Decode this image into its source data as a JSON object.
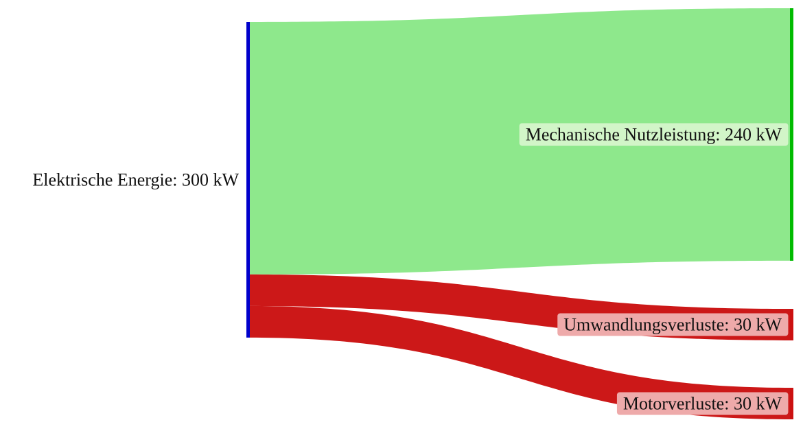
{
  "chart_data": {
    "type": "sankey",
    "unit": "kW",
    "nodes": [
      {
        "id": "src",
        "label": "Elektrische Energie: 300 kW",
        "name": "Elektrische Energie",
        "value": 300,
        "color": "#0000cc",
        "column": 0
      },
      {
        "id": "mech",
        "label": "Mechanische Nutzleistung: 240 kW",
        "name": "Mechanische Nutzleistung",
        "value": 240,
        "color": "#00bb00",
        "column": 1,
        "label_bg": "#d2f5c8"
      },
      {
        "id": "umw",
        "label": "Umwandlungsverluste: 30 kW",
        "name": "Umwandlungsverluste",
        "value": 30,
        "color": "#cc1111",
        "column": 1,
        "label_bg": "#eeaaaa"
      },
      {
        "id": "mot",
        "label": "Motorverluste: 30 kW",
        "name": "Motorverluste",
        "value": 30,
        "color": "#cc1111",
        "column": 1,
        "label_bg": "#eeaaaa"
      }
    ],
    "links": [
      {
        "source": "src",
        "target": "mech",
        "value": 240,
        "color": "#8ee88c"
      },
      {
        "source": "src",
        "target": "umw",
        "value": 30,
        "color": "#cc1818"
      },
      {
        "source": "src",
        "target": "mot",
        "value": 30,
        "color": "#cc1818"
      }
    ]
  }
}
